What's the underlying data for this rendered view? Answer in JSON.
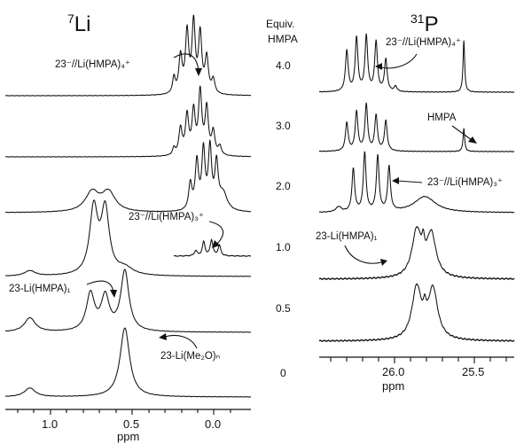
{
  "chart_data": [
    {
      "type": "line",
      "nucleus_title": "7Li",
      "nucleus_mass": "7",
      "nucleus_symbol": "Li",
      "xlabel": "ppm",
      "xlim": [
        1.25,
        -0.25
      ],
      "xticks": [
        "1.0",
        "0.5",
        "0.0"
      ],
      "series": [
        {
          "equiv": "4.0",
          "peaks": [
            {
              "c": 0.22,
              "w": 0.01,
              "h": 18
            },
            {
              "c": 0.18,
              "w": 0.012,
              "h": 42
            },
            {
              "c": 0.14,
              "w": 0.012,
              "h": 68
            },
            {
              "c": 0.1,
              "w": 0.012,
              "h": 78
            },
            {
              "c": 0.06,
              "w": 0.012,
              "h": 66
            },
            {
              "c": 0.02,
              "w": 0.012,
              "h": 40
            },
            {
              "c": -0.02,
              "w": 0.012,
              "h": 16
            }
          ]
        },
        {
          "equiv": "3.0",
          "peaks": [
            {
              "c": 0.22,
              "w": 0.01,
              "h": 8
            },
            {
              "c": 0.18,
              "w": 0.012,
              "h": 30
            },
            {
              "c": 0.14,
              "w": 0.012,
              "h": 44
            },
            {
              "c": 0.1,
              "w": 0.012,
              "h": 48
            },
            {
              "c": 0.06,
              "w": 0.012,
              "h": 70
            },
            {
              "c": 0.02,
              "w": 0.012,
              "h": 52
            },
            {
              "c": -0.02,
              "w": 0.012,
              "h": 26
            },
            {
              "c": -0.06,
              "w": 0.012,
              "h": 10
            }
          ]
        },
        {
          "equiv": "2.0",
          "peaks": [
            {
              "c": 0.72,
              "w": 0.05,
              "h": 22
            },
            {
              "c": 0.62,
              "w": 0.05,
              "h": 22
            },
            {
              "c": 0.12,
              "w": 0.012,
              "h": 30
            },
            {
              "c": 0.08,
              "w": 0.012,
              "h": 54
            },
            {
              "c": 0.04,
              "w": 0.012,
              "h": 66
            },
            {
              "c": 0.0,
              "w": 0.012,
              "h": 68
            },
            {
              "c": -0.04,
              "w": 0.012,
              "h": 50
            },
            {
              "c": -0.08,
              "w": 0.03,
              "h": 20
            }
          ]
        },
        {
          "equiv": "1.0",
          "peaks": [
            {
              "c": 1.1,
              "w": 0.04,
              "h": 6
            },
            {
              "c": 0.71,
              "w": 0.03,
              "h": 74
            },
            {
              "c": 0.64,
              "w": 0.03,
              "h": 72
            },
            {
              "c": 0.52,
              "w": 0.06,
              "h": 8
            }
          ]
        },
        {
          "equiv": "0.5",
          "peaks": [
            {
              "c": 1.1,
              "w": 0.04,
              "h": 16
            },
            {
              "c": 0.73,
              "w": 0.03,
              "h": 42
            },
            {
              "c": 0.64,
              "w": 0.03,
              "h": 38
            },
            {
              "c": 0.52,
              "w": 0.03,
              "h": 68
            }
          ]
        },
        {
          "equiv": "0",
          "peaks": [
            {
              "c": 1.1,
              "w": 0.04,
              "h": 10
            },
            {
              "c": 0.52,
              "w": 0.035,
              "h": 78
            }
          ]
        }
      ],
      "inset_trace": {
        "peaks": [
          {
            "c": 0.1,
            "w": 0.01,
            "h": 6
          },
          {
            "c": 0.05,
            "w": 0.01,
            "h": 16
          },
          {
            "c": 0.0,
            "w": 0.01,
            "h": 18
          },
          {
            "c": -0.05,
            "w": 0.01,
            "h": 12
          }
        ]
      },
      "annotations": [
        {
          "id": "li-tetra",
          "text": "23⁻//Li(HMPA)₄⁺"
        },
        {
          "id": "li-tri",
          "text": "23⁻//Li(HMPA)₃⁺"
        },
        {
          "id": "li-mono",
          "text": "23-Li(HMPA)₁"
        },
        {
          "id": "li-ether",
          "text": "23-Li(Me₂O)ₙ"
        }
      ]
    },
    {
      "type": "line",
      "nucleus_title": "31P",
      "nucleus_mass": "31",
      "nucleus_symbol": "P",
      "xlabel": "ppm",
      "xlim": [
        26.45,
        25.25
      ],
      "xticks": [
        "26.0",
        "25.5"
      ],
      "series": [
        {
          "equiv": "4.0",
          "peaks": [
            {
              "c": 26.28,
              "w": 0.01,
              "h": 46
            },
            {
              "c": 26.22,
              "w": 0.01,
              "h": 60
            },
            {
              "c": 26.16,
              "w": 0.01,
              "h": 62
            },
            {
              "c": 26.1,
              "w": 0.01,
              "h": 56
            },
            {
              "c": 26.04,
              "w": 0.01,
              "h": 36
            },
            {
              "c": 25.98,
              "w": 0.01,
              "h": 6
            },
            {
              "c": 25.56,
              "w": 0.006,
              "h": 58
            }
          ]
        },
        {
          "equiv": "3.0",
          "peaks": [
            {
              "c": 26.28,
              "w": 0.01,
              "h": 32
            },
            {
              "c": 26.22,
              "w": 0.01,
              "h": 44
            },
            {
              "c": 26.16,
              "w": 0.01,
              "h": 52
            },
            {
              "c": 26.1,
              "w": 0.01,
              "h": 40
            },
            {
              "c": 26.04,
              "w": 0.01,
              "h": 34
            },
            {
              "c": 25.56,
              "w": 0.006,
              "h": 26
            }
          ]
        },
        {
          "equiv": "2.0",
          "peaks": [
            {
              "c": 26.33,
              "w": 0.02,
              "h": 6
            },
            {
              "c": 26.24,
              "w": 0.01,
              "h": 48
            },
            {
              "c": 26.17,
              "w": 0.01,
              "h": 66
            },
            {
              "c": 26.09,
              "w": 0.01,
              "h": 62
            },
            {
              "c": 26.02,
              "w": 0.01,
              "h": 50
            },
            {
              "c": 25.8,
              "w": 0.08,
              "h": 18
            }
          ]
        },
        {
          "equiv": "1.0",
          "peaks": [
            {
              "c": 25.85,
              "w": 0.035,
              "h": 52
            },
            {
              "c": 25.76,
              "w": 0.035,
              "h": 48
            },
            {
              "c": 25.81,
              "w": 0.01,
              "h": 18
            }
          ]
        },
        {
          "equiv": "0.5",
          "peaks": [
            {
              "c": 25.85,
              "w": 0.035,
              "h": 58
            },
            {
              "c": 25.75,
              "w": 0.035,
              "h": 56
            },
            {
              "c": 25.8,
              "w": 0.01,
              "h": 16
            }
          ]
        }
      ],
      "annotations": [
        {
          "id": "p-tetra",
          "text": "23⁻//Li(HMPA)₄⁺"
        },
        {
          "id": "p-hmpa",
          "text": "HMPA"
        },
        {
          "id": "p-tri",
          "text": "23⁻//Li(HMPA)₃⁺"
        },
        {
          "id": "p-mono",
          "text": "23-Li(HMPA)₁"
        }
      ]
    }
  ],
  "equiv_header": [
    "Equiv.",
    "HMPA"
  ]
}
